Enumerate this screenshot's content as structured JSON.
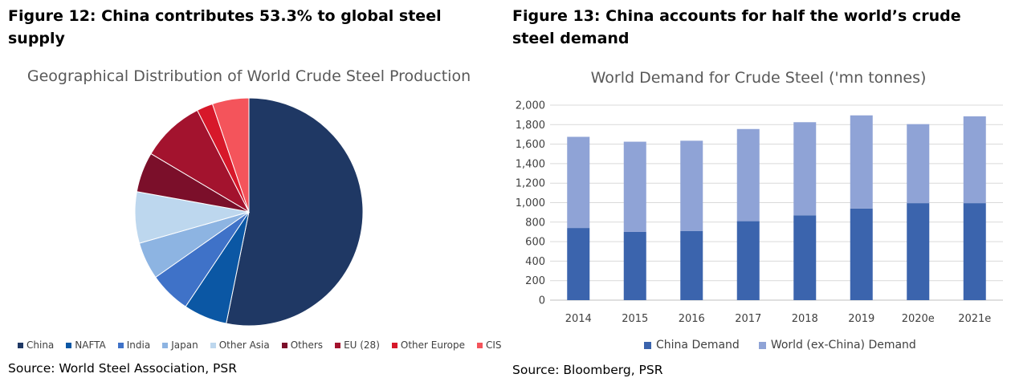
{
  "left": {
    "heading": "Figure 12: China contributes 53.3% to global steel supply",
    "source": "Source: World Steel Association, PSR"
  },
  "right": {
    "heading": "Figure 13: China accounts for half the world’s crude steel demand",
    "source": "Source: Bloomberg, PSR"
  },
  "chart_data": [
    {
      "type": "pie",
      "title": "Geographical Distribution of World Crude Steel Production",
      "legend_position": "bottom",
      "slices": [
        {
          "label": "China",
          "value": 53.3,
          "color": "#1f3864"
        },
        {
          "label": "NAFTA",
          "value": 6.2,
          "color": "#0b57a4"
        },
        {
          "label": "India",
          "value": 5.9,
          "color": "#3f72c8"
        },
        {
          "label": "Japan",
          "value": 5.3,
          "color": "#8db4e2"
        },
        {
          "label": "Other Asia",
          "value": 7.3,
          "color": "#bdd7ee"
        },
        {
          "label": "Others",
          "value": 5.7,
          "color": "#7b0f2a"
        },
        {
          "label": "EU (28)",
          "value": 9.0,
          "color": "#a3132e"
        },
        {
          "label": "Other Europe",
          "value": 2.3,
          "color": "#d7182a"
        },
        {
          "label": "CIS",
          "value": 5.2,
          "color": "#f4545b"
        }
      ]
    },
    {
      "type": "bar",
      "stacked": true,
      "title": "World Demand for Crude Steel ('mn tonnes)",
      "categories": [
        "2014",
        "2015",
        "2016",
        "2017",
        "2018",
        "2019",
        "2020e",
        "2021e"
      ],
      "series": [
        {
          "name": "China Demand",
          "color": "#3b64ad",
          "values": [
            740,
            700,
            710,
            810,
            870,
            940,
            995,
            995
          ]
        },
        {
          "name": "World (ex-China) Demand",
          "color": "#8fa3d6",
          "values": [
            935,
            925,
            925,
            945,
            955,
            955,
            810,
            890
          ]
        }
      ],
      "ylim": [
        0,
        2000
      ],
      "yticks": [
        "0",
        "200",
        "400",
        "600",
        "800",
        "1,000",
        "1,200",
        "1,400",
        "1,600",
        "1,800",
        "2,000"
      ],
      "grid": true,
      "legend_position": "bottom"
    }
  ]
}
